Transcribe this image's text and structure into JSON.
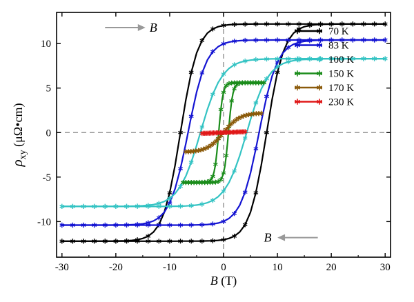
{
  "chart_data": {
    "type": "line",
    "title": "",
    "xlabel": {
      "symbol": "B",
      "unit": " (T)"
    },
    "ylabel": {
      "symbol": "ρ",
      "subscript": "xy",
      "unit": " (μΩ•cm)"
    },
    "xlim": [
      -31,
      31
    ],
    "ylim": [
      -14,
      13.5
    ],
    "xticks": [
      -30,
      -20,
      -10,
      0,
      10,
      20,
      30
    ],
    "yticks": [
      -10,
      -5,
      0,
      5,
      10
    ],
    "grid": false,
    "zero_lines": true,
    "legend": "top-right",
    "annotations": [
      {
        "text": "B",
        "arrow": "right",
        "x": -17,
        "y": 11.8
      },
      {
        "text": "B",
        "arrow": "left",
        "x": 9,
        "y": -11.8
      }
    ],
    "series": [
      {
        "name": "70 K",
        "color": "#000000",
        "b_max": 30,
        "sat": 12.2,
        "hc": 8.0,
        "w": 3.2
      },
      {
        "name": "83 K",
        "color": "#1414d2",
        "b_max": 30,
        "sat": 10.4,
        "hc": 6.6,
        "w": 3.4
      },
      {
        "name": "100 K",
        "color": "#33c3c3",
        "b_max": 30,
        "sat": 8.3,
        "hc": 4.3,
        "w": 4.0
      },
      {
        "name": "150 K",
        "color": "#1a8c1a",
        "b_max": 7.5,
        "sat": 5.6,
        "hc": 0.9,
        "w": 0.8
      },
      {
        "name": "170 K",
        "color": "#8b5a0a",
        "b_max": 7,
        "sat": 2.2,
        "hc": 0.0,
        "w": 3.0
      },
      {
        "name": "230 K",
        "color": "#e01818",
        "b_max": 4,
        "sat": 0.3,
        "hc": 0.0,
        "w": 12.0
      }
    ]
  }
}
